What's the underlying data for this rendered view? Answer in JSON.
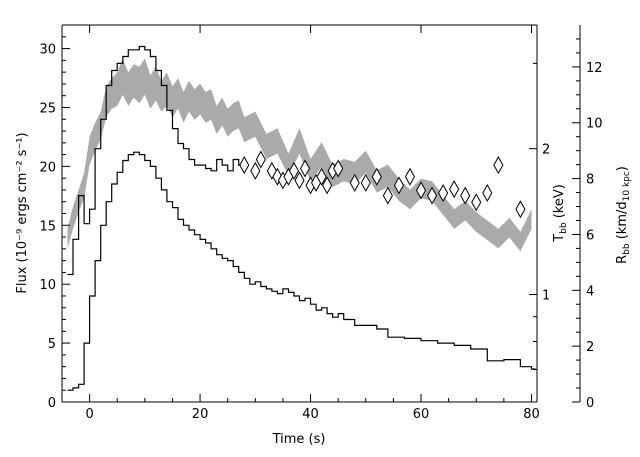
{
  "chart_data": {
    "type": "line",
    "xlabel": "Time (s)",
    "ylabel": "Flux (10⁻⁹ ergs cm⁻² s⁻¹)",
    "y2label_temp": "T",
    "y2label_temp_sub": "bb",
    "y2label_temp_unit": " (keV)",
    "y2label_radius": "R",
    "y2label_radius_sub": "bb",
    "y2label_radius_unit": " (km/d",
    "y2label_radius_unit_sub": "10 kpc",
    "y2label_radius_unit_end": ")",
    "xlim": [
      -5,
      81
    ],
    "ylim": [
      0,
      32
    ],
    "y3lim": [
      0,
      13.5
    ],
    "x_ticks": [
      {
        "value": 0,
        "label": "0"
      },
      {
        "value": 20,
        "label": "20"
      },
      {
        "value": 40,
        "label": "40"
      },
      {
        "value": 60,
        "label": "60"
      },
      {
        "value": 80,
        "label": "80"
      }
    ],
    "y_ticks": [
      {
        "value": 0,
        "label": "0"
      },
      {
        "value": 5,
        "label": "5"
      },
      {
        "value": 10,
        "label": "10"
      },
      {
        "value": 15,
        "label": "15"
      },
      {
        "value": 20,
        "label": "20"
      },
      {
        "value": 25,
        "label": "25"
      },
      {
        "value": 30,
        "label": "30"
      }
    ],
    "temp_ticks": [
      {
        "value": 1,
        "label": "1"
      },
      {
        "value": 2,
        "label": "2"
      }
    ],
    "temp_log_range": [
      0.6,
      3.6
    ],
    "radius_ticks": [
      {
        "value": 0,
        "label": "0"
      },
      {
        "value": 2,
        "label": "2"
      },
      {
        "value": 4,
        "label": "4"
      },
      {
        "value": 6,
        "label": "6"
      },
      {
        "value": 8,
        "label": "8"
      },
      {
        "value": 10,
        "label": "10"
      },
      {
        "value": 12,
        "label": "12"
      }
    ],
    "series": [
      {
        "kind": "flux",
        "color": "#000000",
        "x": [
          -4,
          -3,
          -2,
          -1,
          0,
          1,
          2,
          3,
          4,
          5,
          6,
          7,
          8,
          9,
          10,
          11,
          12,
          13,
          14,
          15,
          16,
          17,
          18,
          19,
          20,
          21,
          22,
          23,
          24,
          25,
          26,
          27,
          28,
          29,
          30,
          31,
          32,
          33,
          34,
          35,
          36,
          37,
          38,
          39,
          40,
          41,
          42,
          43,
          44,
          45,
          46,
          48,
          50,
          52,
          54,
          57,
          60,
          63,
          66,
          69,
          72,
          75,
          78,
          80
        ],
        "y": [
          1,
          1.2,
          1.5,
          5,
          9,
          12,
          15,
          17,
          18.5,
          19.5,
          20.5,
          21,
          21.2,
          21,
          20.5,
          20,
          19,
          18,
          17,
          16.5,
          15.5,
          15,
          14.6,
          14.2,
          13.8,
          13.5,
          13,
          12.5,
          12.2,
          12,
          11.5,
          11,
          10.5,
          10,
          10.2,
          9.8,
          9.6,
          9.4,
          9.2,
          9.6,
          9.3,
          9,
          8.6,
          8.8,
          8.3,
          7.8,
          8,
          7.5,
          7.2,
          7.5,
          7,
          6.5,
          6.5,
          6.2,
          5.5,
          5.4,
          5.2,
          5,
          4.8,
          4.5,
          3.5,
          3.6,
          3,
          2.8
        ]
      },
      {
        "kind": "temperature",
        "x": [
          -4,
          -3,
          -2,
          -1,
          0,
          1,
          2,
          3,
          4,
          5,
          6,
          7,
          8,
          9,
          10,
          11,
          12,
          13,
          14,
          15,
          16,
          17,
          18,
          19,
          20,
          21,
          22,
          23,
          24,
          25,
          26,
          27
        ],
        "y": [
          1.1,
          1.3,
          1.6,
          1.4,
          1.5,
          2.0,
          2.3,
          2.7,
          2.9,
          3.0,
          3.1,
          3.2,
          3.2,
          3.25,
          3.2,
          3.1,
          2.9,
          2.7,
          2.4,
          2.2,
          2.05,
          2.0,
          1.9,
          1.85,
          1.85,
          1.82,
          1.8,
          1.9,
          1.85,
          1.8,
          1.9,
          1.85
        ]
      },
      {
        "kind": "temperature-diamonds",
        "x": [
          28,
          30,
          31,
          33,
          34,
          35,
          36,
          37,
          38,
          39,
          40,
          41,
          42,
          43,
          44,
          45,
          48,
          50,
          52,
          54,
          56,
          58,
          60,
          62,
          64,
          66,
          68,
          70,
          72,
          74,
          78
        ],
        "y": [
          1.85,
          1.8,
          1.9,
          1.8,
          1.75,
          1.72,
          1.75,
          1.8,
          1.72,
          1.82,
          1.68,
          1.7,
          1.75,
          1.68,
          1.8,
          1.82,
          1.7,
          1.7,
          1.75,
          1.6,
          1.68,
          1.75,
          1.64,
          1.6,
          1.62,
          1.65,
          1.6,
          1.55,
          1.62,
          1.85,
          1.5
        ]
      },
      {
        "kind": "radius-band",
        "color": "#aaaaaa",
        "x": [
          -4,
          -3,
          -2,
          -1,
          0,
          1,
          2,
          3,
          4,
          5,
          6,
          7,
          8,
          9,
          10,
          11,
          12,
          13,
          14,
          15,
          16,
          17,
          18,
          19,
          20,
          21,
          22,
          23,
          24,
          25,
          26,
          27,
          28,
          30,
          32,
          34,
          36,
          38,
          40,
          42,
          44,
          46,
          48,
          50,
          52,
          54,
          56,
          58,
          60,
          62,
          64,
          66,
          68,
          70,
          72,
          74,
          76,
          78,
          80
        ],
        "low": [
          5.5,
          6.2,
          6.8,
          7.3,
          8.5,
          9.0,
          9.4,
          10.2,
          10.5,
          10.6,
          11.0,
          10.6,
          10.9,
          10.7,
          11.0,
          10.5,
          10.8,
          10.4,
          10.6,
          10.2,
          10.5,
          10.0,
          10.4,
          10.1,
          10.3,
          10.0,
          10.1,
          9.6,
          9.9,
          9.5,
          9.7,
          9.8,
          9.3,
          9.5,
          8.7,
          8.9,
          8.1,
          8.9,
          7.9,
          8.4,
          7.7,
          7.9,
          7.8,
          8.2,
          7.5,
          7.7,
          7.2,
          6.9,
          7.3,
          7.2,
          6.7,
          6.2,
          6.5,
          6.1,
          5.8,
          5.5,
          5.9,
          5.4,
          6.2
        ],
        "high": [
          6.2,
          7.0,
          7.6,
          8.2,
          9.5,
          10.0,
          10.4,
          11.3,
          11.6,
          11.8,
          12.3,
          11.8,
          12.1,
          12.0,
          12.3,
          11.7,
          12.0,
          11.5,
          11.8,
          11.3,
          11.6,
          11.1,
          11.5,
          11.2,
          11.4,
          11.1,
          11.2,
          10.6,
          10.9,
          10.5,
          10.7,
          10.8,
          10.2,
          10.4,
          9.6,
          9.8,
          8.9,
          9.8,
          8.7,
          9.3,
          8.5,
          8.7,
          8.6,
          9.0,
          8.3,
          8.5,
          8.0,
          7.6,
          8.0,
          7.9,
          7.4,
          6.9,
          7.2,
          6.8,
          6.5,
          6.2,
          6.6,
          6.1,
          6.9
        ]
      }
    ]
  }
}
